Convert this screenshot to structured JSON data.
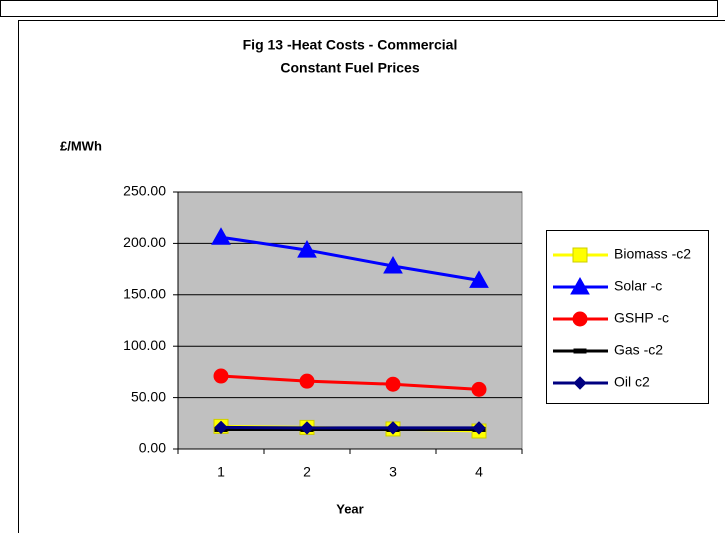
{
  "chart_data": {
    "type": "line",
    "title": "Fig 13 -Heat Costs - Commercial",
    "subtitle": "Constant Fuel Prices",
    "y_label": "£/MWh",
    "x_label": "Year",
    "categories": [
      "1",
      "2",
      "3",
      "4"
    ],
    "series": [
      {
        "name": "Biomass -c2",
        "color": "#ffff00",
        "marker": "square",
        "values": [
          22,
          21,
          19.5,
          17.5
        ]
      },
      {
        "name": "Solar -c",
        "color": "#0000ff",
        "marker": "triangle",
        "values": [
          206,
          193.5,
          178,
          164
        ]
      },
      {
        "name": "GSHP -c",
        "color": "#ff0000",
        "marker": "circle",
        "values": [
          71,
          66,
          63,
          58
        ]
      },
      {
        "name": "Gas -c2",
        "color": "#000000",
        "marker": "dash",
        "values": [
          19,
          19,
          19,
          19
        ]
      },
      {
        "name": "Oil c2",
        "color": "#000080",
        "marker": "diamond",
        "values": [
          21,
          20.5,
          20.5,
          20.5
        ]
      }
    ],
    "ylim": [
      0,
      250
    ],
    "yticks": [
      {
        "value": 0,
        "label": "0.00"
      },
      {
        "value": 50,
        "label": "50.00"
      },
      {
        "value": 100,
        "label": "100.00"
      },
      {
        "value": 150,
        "label": "150.00"
      },
      {
        "value": 200,
        "label": "200.00"
      },
      {
        "value": 250,
        "label": "250.00"
      }
    ],
    "grid": true,
    "legend": "right",
    "plot_background": "#c0c0c0"
  }
}
